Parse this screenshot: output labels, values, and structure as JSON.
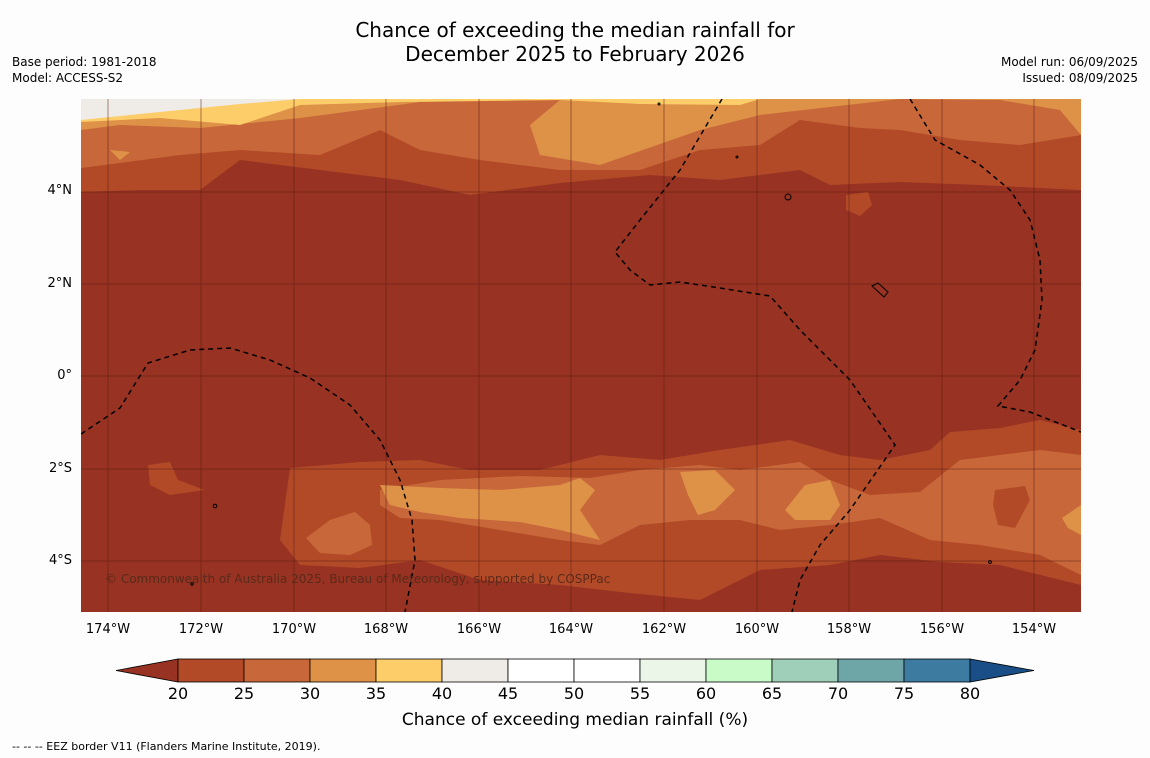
{
  "title_line1": "Chance of exceeding the median rainfall for",
  "title_line2": "December 2025 to February 2026",
  "base_period": "Base period: 1981-2018",
  "model": "Model: ACCESS-S2",
  "model_run": "Model run: 06/09/2025",
  "issued": "Issued: 08/09/2025",
  "lat_labels": [
    "4°N",
    "2°N",
    "0°",
    "2°S",
    "4°S"
  ],
  "lon_labels": [
    "174°W",
    "172°W",
    "170°W",
    "168°W",
    "166°W",
    "164°W",
    "162°W",
    "160°W",
    "158°W",
    "156°W",
    "154°W"
  ],
  "copyright": "© Commonwealth of Australia 2025, Bureau of Meteorology, supported by COSPPac",
  "colorbar": {
    "ticks": [
      "20",
      "25",
      "30",
      "35",
      "40",
      "45",
      "50",
      "55",
      "60",
      "65",
      "70",
      "75",
      "80"
    ],
    "colors": [
      "#983222",
      "#b24a27",
      "#c8683a",
      "#de9248",
      "#fdcd6a",
      "#efebe6",
      "#ffffff",
      "#ffffff",
      "#ebf6e8",
      "#c9fbc9",
      "#9fcfb9",
      "#6ea6a8",
      "#3d7ca0",
      "#1a4e86"
    ],
    "title": "Chance of exceeding median rainfall (%)"
  },
  "footnote": "--  --  -- EEZ border V11 (Flanders Marine Institute, 2019)."
}
